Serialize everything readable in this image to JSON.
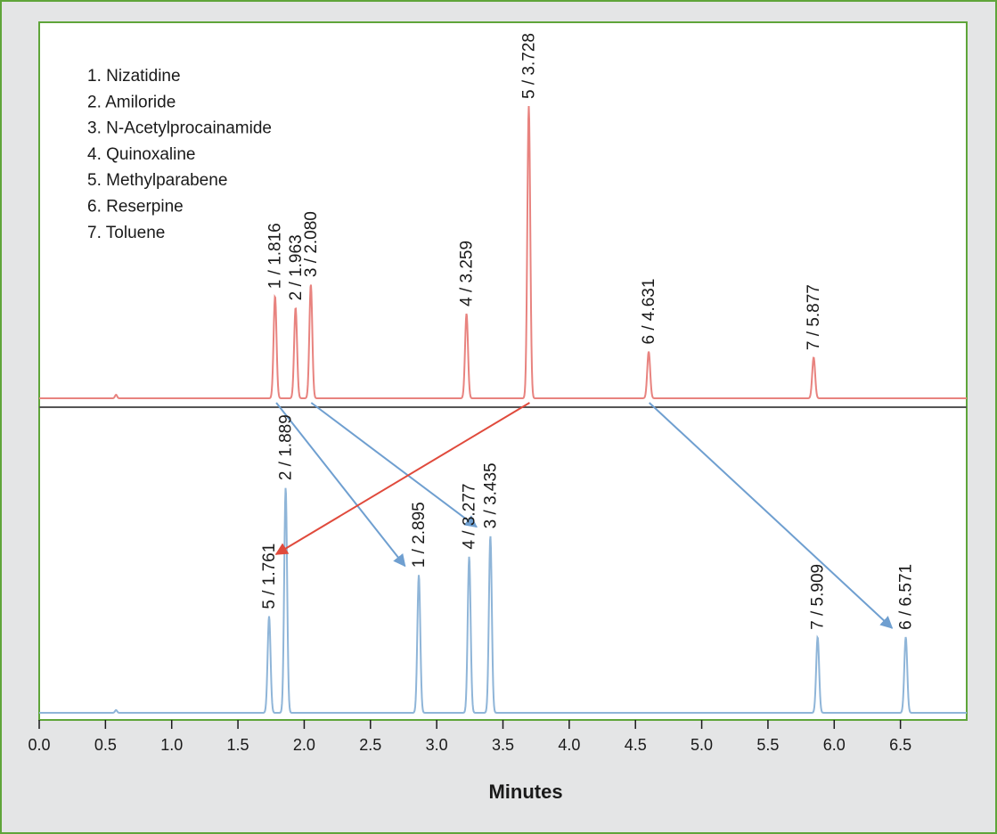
{
  "chart_data": {
    "type": "line",
    "xlabel": "Minutes",
    "ylabel": "",
    "xlim": [
      0.0,
      7.0
    ],
    "x_ticks": [
      "0.0",
      "0.5",
      "1.0",
      "1.5",
      "2.0",
      "2.5",
      "3.0",
      "3.5",
      "4.0",
      "4.5",
      "5.0",
      "5.5",
      "6.0",
      "6.5"
    ],
    "legend": [
      "1. Nizatidine",
      "2. Amiloride",
      "3. N-Acetylprocainamide",
      "4. Quinoxaline",
      "5. Methylparabene",
      "6. Reserpine",
      "7. Toluene"
    ],
    "series": [
      {
        "color": "#e8837f",
        "relative_scale": [
          0,
          1
        ],
        "peaks": [
          {
            "label": "1 / 1.816",
            "peak": 1,
            "time": 1.78,
            "height": 0.35
          },
          {
            "label": "2 / 1.963",
            "peak": 2,
            "time": 1.935,
            "height": 0.31
          },
          {
            "label": "3 / 2.080",
            "peak": 3,
            "time": 2.05,
            "height": 0.39
          },
          {
            "label": "4 / 3.259",
            "peak": 4,
            "time": 3.225,
            "height": 0.29
          },
          {
            "label": "5 / 3.728",
            "peak": 5,
            "time": 3.695,
            "height": 1.0
          },
          {
            "label": "6 / 4.631",
            "peak": 6,
            "time": 4.6,
            "height": 0.16
          },
          {
            "label": "7 / 5.877",
            "peak": 7,
            "time": 5.845,
            "height": 0.14
          }
        ]
      },
      {
        "color": "#8fb5d8",
        "relative_scale": [
          0,
          1
        ],
        "peaks": [
          {
            "label": "5 / 1.761",
            "peak": 5,
            "time": 1.735,
            "height": 0.42
          },
          {
            "label": "2 / 1.889",
            "peak": 2,
            "time": 1.86,
            "height": 0.98
          },
          {
            "label": "1 / 2.895",
            "peak": 1,
            "time": 2.865,
            "height": 0.6
          },
          {
            "label": "4 / 3.277",
            "peak": 4,
            "time": 3.245,
            "height": 0.68
          },
          {
            "label": "3 / 3.435",
            "peak": 3,
            "time": 3.405,
            "height": 0.77
          },
          {
            "label": "7 / 5.909",
            "peak": 7,
            "time": 5.875,
            "height": 0.33
          },
          {
            "label": "6 / 6.571",
            "peak": 6,
            "time": 6.54,
            "height": 0.33
          }
        ]
      }
    ],
    "arrows": [
      {
        "peak": 1,
        "from_time": 1.816,
        "to_time": 2.895,
        "color": "#6f9fd0"
      },
      {
        "peak": 3,
        "from_time": 2.08,
        "to_time": 3.435,
        "color": "#6f9fd0"
      },
      {
        "peak": 5,
        "from_time": 3.728,
        "to_time": 1.761,
        "color": "#e04a3c"
      },
      {
        "peak": 6,
        "from_time": 4.631,
        "to_time": 6.571,
        "color": "#6f9fd0"
      }
    ]
  }
}
